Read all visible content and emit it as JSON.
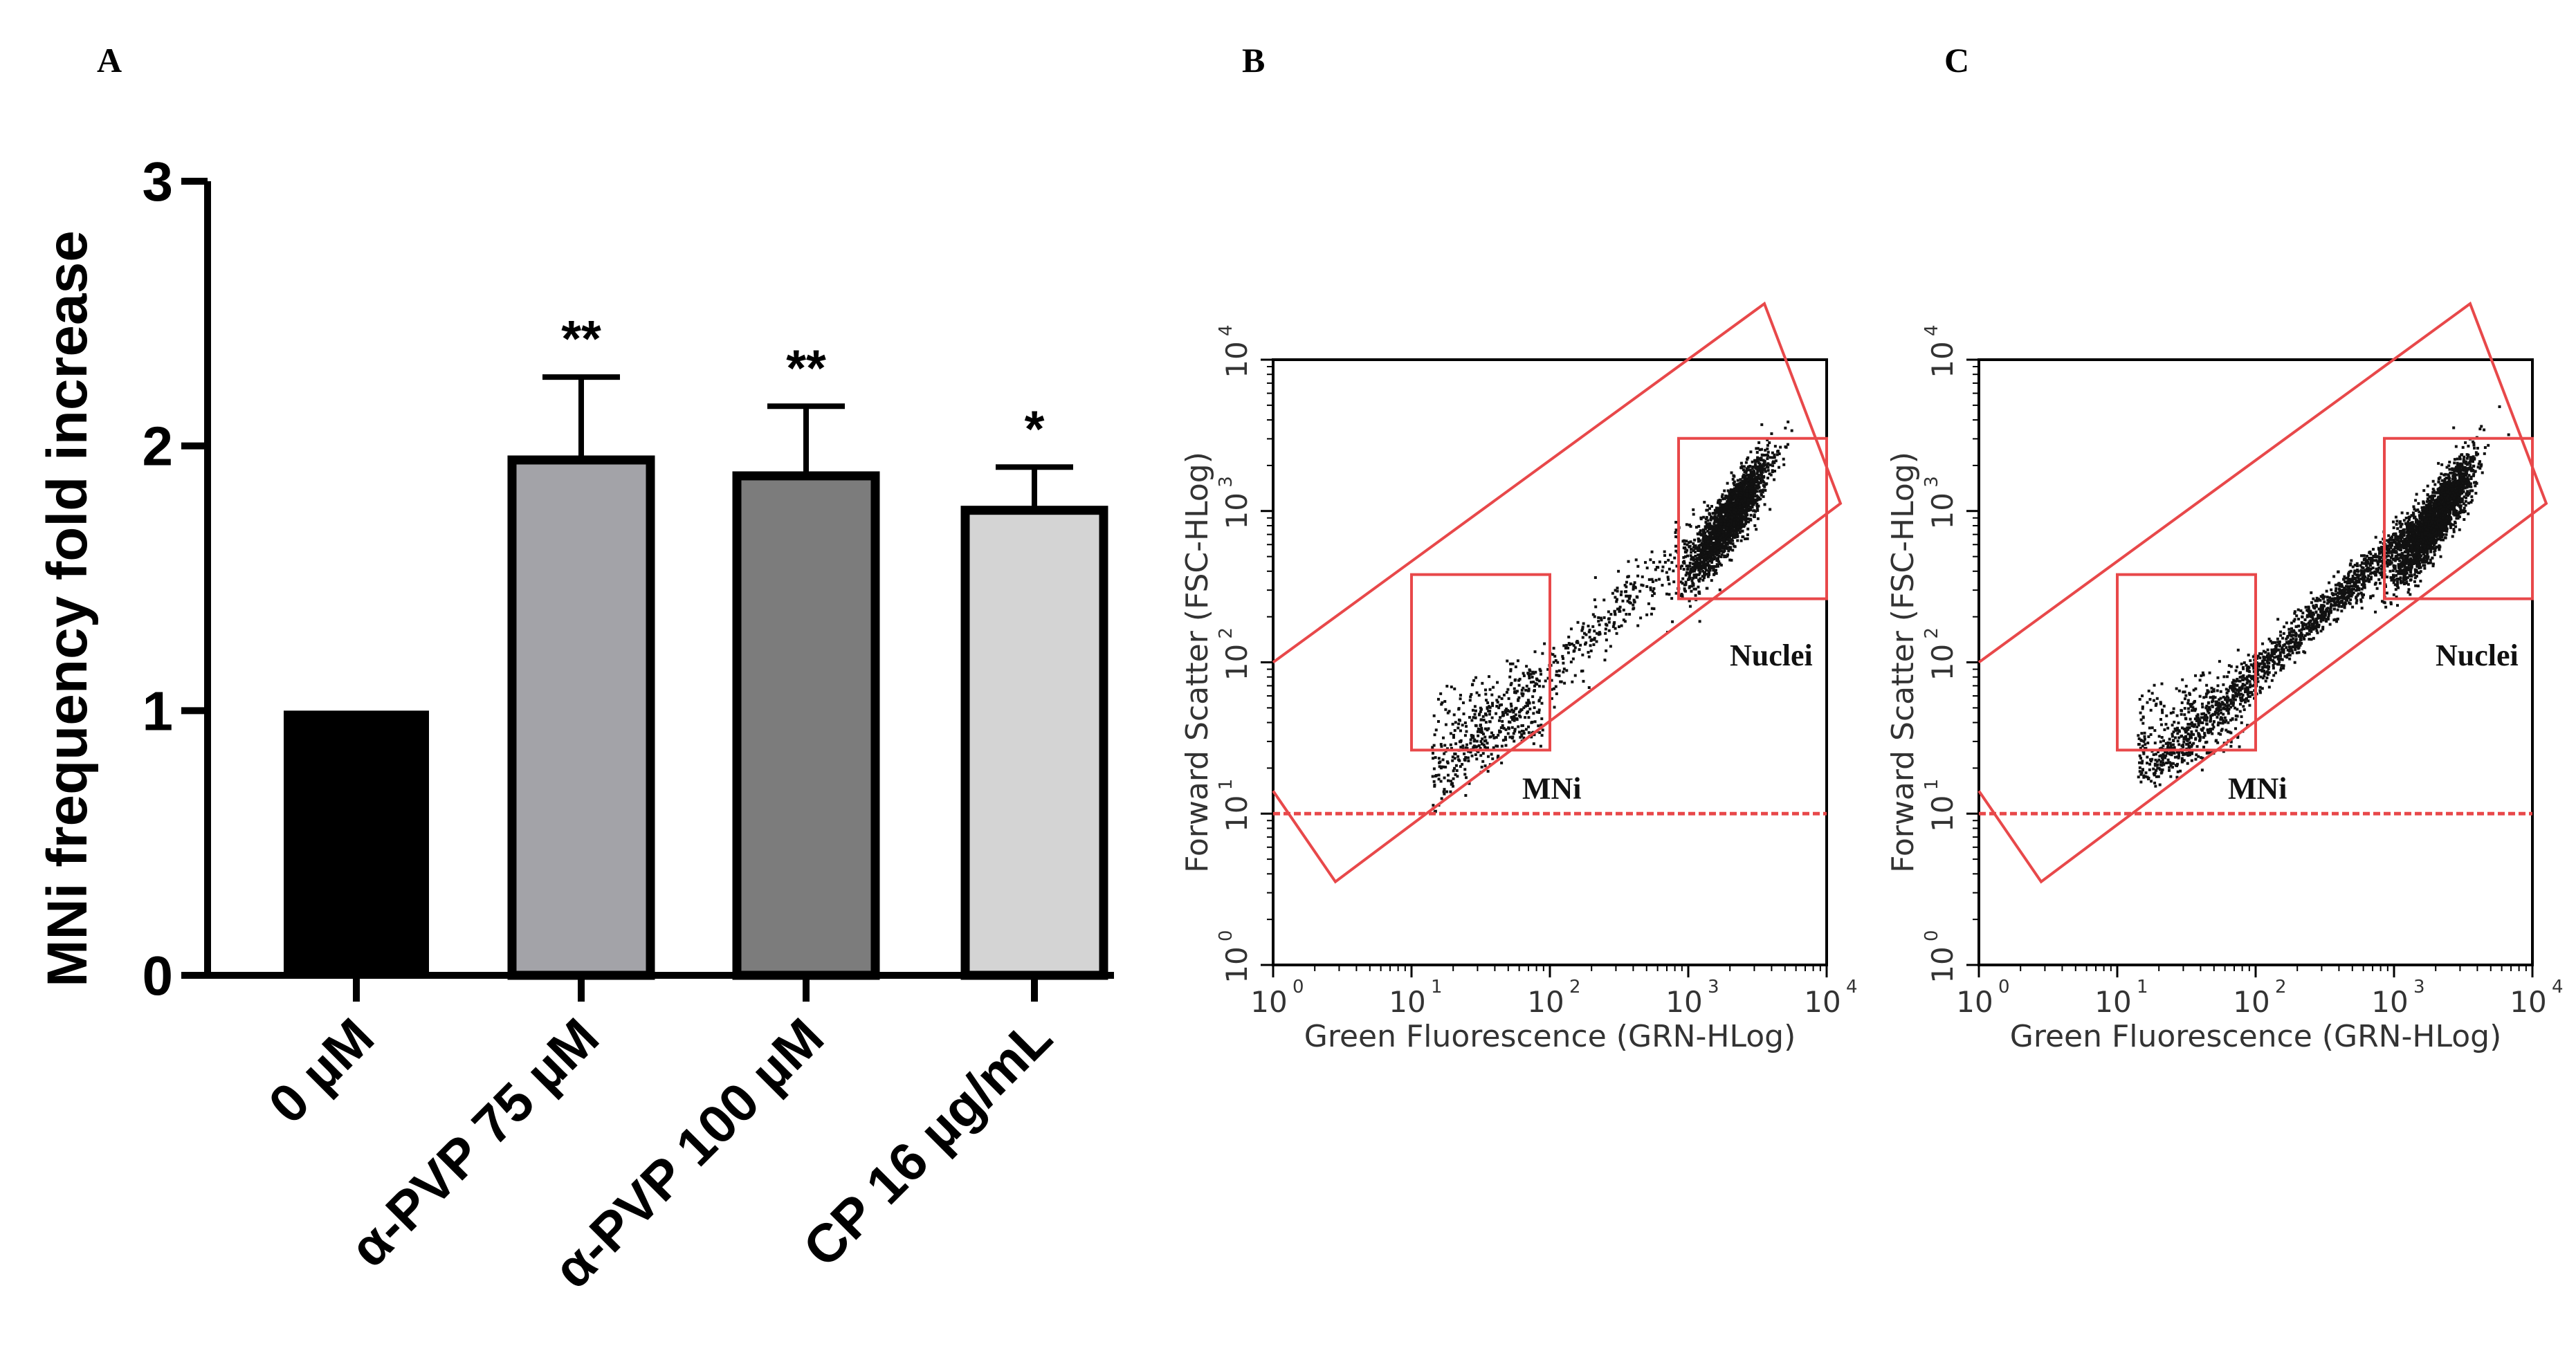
{
  "panel_labels": {
    "a": "A",
    "b": "B",
    "c": "C"
  },
  "colors": {
    "bars": [
      "#000000",
      "#a3a3a8",
      "#7c7c7c",
      "#d4d4d4"
    ],
    "gate": "#e8484a",
    "events": "#111111"
  },
  "chart_data": [
    {
      "type": "bar",
      "panel": "A",
      "categories": [
        "0 µM",
        "α-PVP 75 µM",
        "α-PVP 100 µM",
        "CP 16 µg/mL"
      ],
      "values": [
        1.0,
        1.96,
        1.9,
        1.77
      ],
      "errors": [
        0,
        0.3,
        0.25,
        0.15
      ],
      "significance": [
        "",
        "**",
        "**",
        "*"
      ],
      "ylabel": "MNi frequency fold increase",
      "ylim": [
        0,
        3
      ],
      "yticks": [
        "0",
        "1",
        "2",
        "3"
      ],
      "grid": false
    },
    {
      "type": "scatter",
      "panel": "B",
      "xlabel": "Green Fluorescence (GRN-HLog)",
      "ylabel": "Forward Scatter (FSC-HLog)",
      "log_scale": true,
      "xlim": [
        1,
        10000
      ],
      "ylim": [
        1,
        10000
      ],
      "tick_exponents": [
        "0",
        "1",
        "2",
        "3",
        "4"
      ],
      "gates": [
        "MNi",
        "Nuclei"
      ],
      "threshold_y": 10
    },
    {
      "type": "scatter",
      "panel": "C",
      "xlabel": "Green Fluorescence (GRN-HLog)",
      "ylabel": "Forward Scatter (FSC-HLog)",
      "log_scale": true,
      "xlim": [
        1,
        10000
      ],
      "ylim": [
        1,
        10000
      ],
      "tick_exponents": [
        "0",
        "1",
        "2",
        "3",
        "4"
      ],
      "gates": [
        "MNi",
        "Nuclei"
      ],
      "threshold_y": 10
    }
  ]
}
